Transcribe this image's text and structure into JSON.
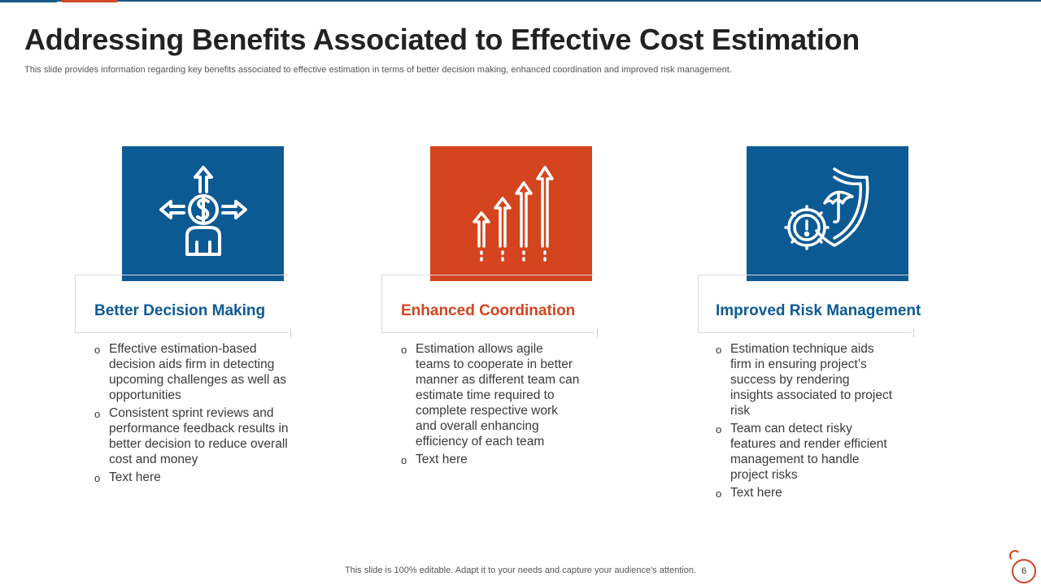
{
  "slide": {
    "title": "Addressing Benefits Associated to Effective Cost Estimation",
    "subtitle": "This slide provides information regarding key benefits associated to effective  estimation in terms of better decision making, enhanced coordination and improved risk management.",
    "footer": "This slide is 100% editable. Adapt it to your needs and capture your audience's attention.",
    "page_number": "6"
  },
  "colors": {
    "blue": "#0c5a94",
    "orange": "#d4441f"
  },
  "cards": [
    {
      "icon": "dollar-person-arrows-icon",
      "title": "Better Decision Making",
      "bullets": [
        "Effective estimation-based decision aids firm in detecting upcoming challenges as well as opportunities",
        "Consistent sprint reviews and performance feedback results in better decision to reduce overall cost and money",
        "Text here"
      ]
    },
    {
      "icon": "growth-arrows-icon",
      "title": "Enhanced Coordination",
      "bullets": [
        "Estimation allows agile teams to cooperate in better manner as different team can estimate time required to complete respective work and overall enhancing efficiency of each team",
        "Text here"
      ]
    },
    {
      "icon": "risk-shield-gear-icon",
      "title": "Improved Risk Management",
      "bullets": [
        "Estimation technique aids firm in ensuring project’s success by rendering insights associated to project risk",
        "Team can detect risky features and render efficient management to handle project risks",
        "Text here"
      ]
    }
  ]
}
